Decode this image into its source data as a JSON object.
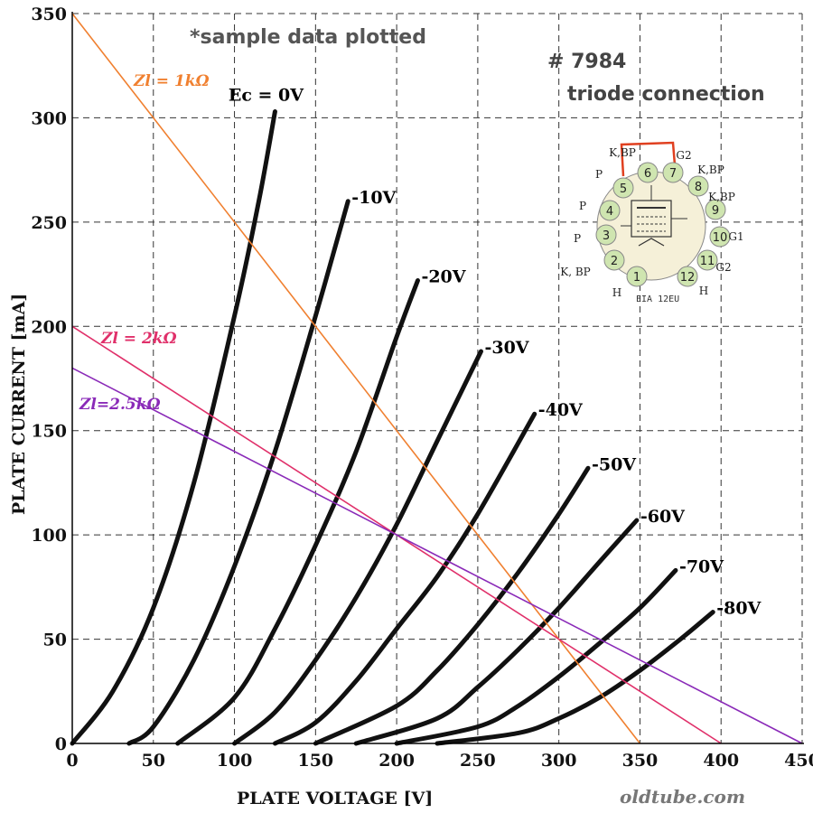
{
  "chart_data": {
    "type": "line",
    "title": "*sample data plotted",
    "xlabel": "PLATE VOLTAGE  [V]",
    "ylabel": "PLATE CURRENT  [mA]",
    "xlim": [
      0,
      450
    ],
    "ylim": [
      0,
      350
    ],
    "xticks": [
      0,
      50,
      100,
      150,
      200,
      250,
      300,
      350,
      400,
      450
    ],
    "yticks": [
      0,
      50,
      100,
      150,
      200,
      250,
      300,
      350
    ],
    "grid": true,
    "series": [
      {
        "name": "Ec = 0V",
        "label": "Ec = 0V",
        "x": [
          0,
          25,
          50,
          75,
          100,
          115,
          125
        ],
        "y": [
          0,
          25,
          65,
          125,
          205,
          260,
          303
        ]
      },
      {
        "name": "-10V",
        "label": "-10V",
        "x": [
          35,
          50,
          75,
          100,
          125,
          150,
          170
        ],
        "y": [
          0,
          8,
          40,
          85,
          140,
          205,
          260
        ]
      },
      {
        "name": "-20V",
        "label": "-20V",
        "x": [
          65,
          100,
          125,
          150,
          175,
          200,
          213
        ],
        "y": [
          0,
          22,
          55,
          95,
          140,
          195,
          222
        ]
      },
      {
        "name": "-30V",
        "label": "-30V",
        "x": [
          100,
          125,
          150,
          175,
          200,
          225,
          252
        ],
        "y": [
          0,
          15,
          40,
          70,
          105,
          145,
          188
        ]
      },
      {
        "name": "-40V",
        "label": "-40V",
        "x": [
          125,
          150,
          175,
          200,
          225,
          250,
          285
        ],
        "y": [
          0,
          10,
          30,
          55,
          80,
          110,
          158
        ]
      },
      {
        "name": "-50V",
        "label": "-50V",
        "x": [
          150,
          200,
          225,
          250,
          275,
          300,
          318
        ],
        "y": [
          0,
          18,
          35,
          57,
          82,
          110,
          132
        ]
      },
      {
        "name": "-60V",
        "label": "-60V",
        "x": [
          175,
          225,
          250,
          275,
          300,
          325,
          348
        ],
        "y": [
          0,
          12,
          27,
          45,
          65,
          87,
          107
        ]
      },
      {
        "name": "-70V",
        "label": "-70V",
        "x": [
          200,
          250,
          275,
          300,
          325,
          350,
          372
        ],
        "y": [
          0,
          8,
          18,
          32,
          48,
          65,
          83
        ]
      },
      {
        "name": "-80V",
        "label": "-80V",
        "x": [
          225,
          275,
          300,
          325,
          350,
          375,
          395
        ],
        "y": [
          0,
          5,
          12,
          22,
          35,
          50,
          63
        ]
      }
    ],
    "load_lines": [
      {
        "label": "Zl = 1kΩ",
        "x": [
          0,
          350
        ],
        "y": [
          350,
          0
        ],
        "color": "#f08030"
      },
      {
        "label": "Zl = 2kΩ",
        "x": [
          0,
          400
        ],
        "y": [
          200,
          0
        ],
        "color": "#e0306a"
      },
      {
        "label": "Zl=2.5kΩ",
        "x": [
          0,
          450
        ],
        "y": [
          180,
          0
        ],
        "color": "#8a2ab8"
      }
    ]
  },
  "header": {
    "tube_number": "# 7984",
    "connection": "triode connection"
  },
  "base_diagram": {
    "base_code": "EIA 12EU",
    "pins": [
      "1",
      "2",
      "3",
      "4",
      "5",
      "6",
      "7",
      "8",
      "9",
      "10",
      "11",
      "12"
    ],
    "pin_names": [
      "H",
      "K, BP",
      "P",
      "P",
      "P",
      "K,BP",
      "G2",
      "K,BP",
      "K,BP",
      "G1",
      "G2",
      "H"
    ]
  },
  "watermark": "oldtube.com",
  "colors": {
    "curve": "#111111",
    "grid": "#333333",
    "pin_fill": "#cfe5b0",
    "base_fill": "#f5f0d8",
    "strap": "#e04020"
  }
}
